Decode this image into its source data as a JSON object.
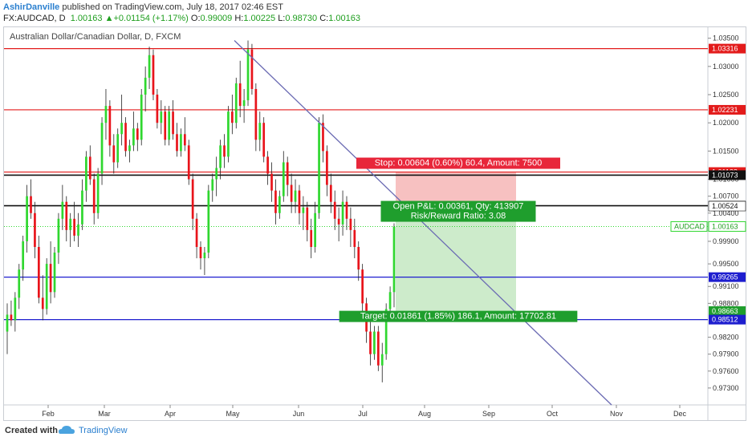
{
  "header": {
    "author": "AshirDanville",
    "published": "published on TradingView.com, July 18, 2017 02:46 EST",
    "symbol": "FX:AUDCAD, D",
    "last": "1.00163",
    "change": "+0.01154 (+1.17%)",
    "open_label": "O:",
    "open": "0.99009",
    "high_label": "H:",
    "high": "1.00225",
    "low_label": "L:",
    "low": "0.98730",
    "close_label": "C:",
    "close": "1.00163"
  },
  "chart_title": "Australian Dollar/Canadian Dollar, D, FXCM",
  "footer": {
    "created": "Created with",
    "brand": "TradingView"
  },
  "colors": {
    "up": "#2fd72f",
    "down": "#e8141b",
    "red_line": "#e31b1b",
    "black_line": "#111111",
    "blue_line": "#1e1ecf",
    "trend_line": "#6b6bb3",
    "stop_zone": "#f7c1c1",
    "target_zone": "#cdebcb",
    "stop_label": "#e8263a",
    "target_label": "#1f9e2d"
  },
  "chart_data": {
    "type": "candlestick",
    "x_ticks": [
      "Feb",
      "Mar",
      "Apr",
      "May",
      "Jun",
      "Jul",
      "Aug",
      "Sep",
      "Oct",
      "Nov",
      "Dec"
    ],
    "y_ticks": [
      "1.03500",
      "1.03000",
      "1.02500",
      "1.02000",
      "1.01500",
      "1.01000",
      "1.00700",
      "1.00400",
      "0.99900",
      "0.99500",
      "0.99100",
      "0.98800",
      "0.98200",
      "0.97900",
      "0.97600",
      "0.97300"
    ],
    "ylim": [
      0.97,
      1.0368
    ],
    "horizontal_levels": [
      {
        "price": 1.03316,
        "label": "1.03316",
        "color": "red"
      },
      {
        "price": 1.02231,
        "label": "1.02231",
        "color": "red"
      },
      {
        "price": 1.01128,
        "label": "1.01128",
        "color": "red"
      },
      {
        "price": 1.01073,
        "label": "1.01073",
        "color": "black"
      },
      {
        "price": 1.00531,
        "label": "1.00531",
        "color": "black"
      },
      {
        "price": 1.00524,
        "label": "1.00524",
        "color": "white"
      },
      {
        "price": 0.99265,
        "label": "0.99265",
        "color": "blue"
      },
      {
        "price": 0.98663,
        "label": "0.98663",
        "color": "green"
      },
      {
        "price": 0.98512,
        "label": "0.98512",
        "color": "blue"
      }
    ],
    "current_price": {
      "symbol": "AUDCAD",
      "price": 1.00163,
      "label": "1.00163"
    },
    "position": {
      "stop_text": "Stop: 0.00604 (0.60%) 60.4, Amount: 7500",
      "pnl_text": "Open P&L: 0.00361, Qty: 413907",
      "rr_text": "Risk/Reward Ratio: 3.08",
      "target_text": "Target: 0.01861 (1.85%) 186.1, Amount: 17702.81"
    },
    "candles": [
      [
        0.983,
        0.988,
        0.979,
        0.986
      ],
      [
        0.986,
        0.9885,
        0.984,
        0.985
      ],
      [
        0.985,
        0.99,
        0.983,
        0.989
      ],
      [
        0.989,
        0.995,
        0.987,
        0.994
      ],
      [
        0.994,
        1.0,
        0.992,
        0.999
      ],
      [
        0.999,
        1.009,
        0.997,
        1.007
      ],
      [
        1.007,
        1.01,
        1.003,
        1.004
      ],
      [
        1.004,
        1.006,
        0.996,
        0.998
      ],
      [
        0.998,
        1.0,
        0.988,
        0.989
      ],
      [
        0.989,
        0.993,
        0.985,
        0.987
      ],
      [
        0.987,
        0.996,
        0.986,
        0.995
      ],
      [
        0.995,
        0.999,
        0.988,
        0.99
      ],
      [
        0.99,
        0.998,
        0.989,
        0.997
      ],
      [
        0.997,
        1.004,
        0.995,
        1.003
      ],
      [
        1.003,
        1.009,
        1.001,
        1.006
      ],
      [
        1.006,
        1.007,
        0.999,
        1.001
      ],
      [
        1.001,
        1.004,
        0.998,
        1.003
      ],
      [
        1.003,
        1.006,
        0.999,
        1.0
      ],
      [
        1.0,
        1.004,
        0.998,
        1.002
      ],
      [
        1.002,
        1.01,
        1.001,
        1.008
      ],
      [
        1.008,
        1.015,
        1.006,
        1.014
      ],
      [
        1.014,
        1.016,
        1.009,
        1.01
      ],
      [
        1.01,
        1.011,
        1.002,
        1.004
      ],
      [
        1.004,
        1.012,
        1.003,
        1.011
      ],
      [
        1.011,
        1.021,
        1.009,
        1.02
      ],
      [
        1.02,
        1.026,
        1.017,
        1.023
      ],
      [
        1.023,
        1.024,
        1.014,
        1.016
      ],
      [
        1.016,
        1.018,
        1.011,
        1.013
      ],
      [
        1.013,
        1.019,
        1.012,
        1.018
      ],
      [
        1.018,
        1.025,
        1.016,
        1.02
      ],
      [
        1.02,
        1.021,
        1.014,
        1.015
      ],
      [
        1.015,
        1.017,
        1.013,
        1.016
      ],
      [
        1.016,
        1.022,
        1.015,
        1.019
      ],
      [
        1.019,
        1.02,
        1.015,
        1.017
      ],
      [
        1.017,
        1.026,
        1.016,
        1.025
      ],
      [
        1.025,
        1.03,
        1.022,
        1.028
      ],
      [
        1.028,
        1.0335,
        1.026,
        1.032
      ],
      [
        1.032,
        1.033,
        1.024,
        1.025
      ],
      [
        1.025,
        1.026,
        1.019,
        1.02
      ],
      [
        1.02,
        1.024,
        1.018,
        1.022
      ],
      [
        1.022,
        1.023,
        1.016,
        1.017
      ],
      [
        1.017,
        1.023,
        1.016,
        1.022
      ],
      [
        1.022,
        1.024,
        1.017,
        1.018
      ],
      [
        1.018,
        1.02,
        1.014,
        1.015
      ],
      [
        1.015,
        1.019,
        1.014,
        1.018
      ],
      [
        1.018,
        1.021,
        1.015,
        1.016
      ],
      [
        1.016,
        1.017,
        1.009,
        1.01
      ],
      [
        1.01,
        1.011,
        1.001,
        1.003
      ],
      [
        1.003,
        1.004,
        0.996,
        0.998
      ],
      [
        0.998,
        0.999,
        0.994,
        0.996
      ],
      [
        0.996,
        0.998,
        0.993,
        0.997
      ],
      [
        0.997,
        1.009,
        0.996,
        1.008
      ],
      [
        1.008,
        1.011,
        1.006,
        1.01
      ],
      [
        1.01,
        1.014,
        1.007,
        1.012
      ],
      [
        1.012,
        1.017,
        1.01,
        1.016
      ],
      [
        1.016,
        1.018,
        1.012,
        1.014
      ],
      [
        1.014,
        1.023,
        1.013,
        1.022
      ],
      [
        1.022,
        1.025,
        1.018,
        1.02
      ],
      [
        1.02,
        1.028,
        1.019,
        1.027
      ],
      [
        1.027,
        1.031,
        1.021,
        1.023
      ],
      [
        1.023,
        1.026,
        1.02,
        1.024
      ],
      [
        1.024,
        1.0346,
        1.023,
        1.033
      ],
      [
        1.033,
        1.034,
        1.025,
        1.026
      ],
      [
        1.026,
        1.027,
        1.015,
        1.017
      ],
      [
        1.017,
        1.022,
        1.015,
        1.02
      ],
      [
        1.02,
        1.021,
        1.013,
        1.014
      ],
      [
        1.014,
        1.015,
        1.009,
        1.011
      ],
      [
        1.011,
        1.013,
        1.006,
        1.008
      ],
      [
        1.008,
        1.01,
        1.002,
        1.004
      ],
      [
        1.004,
        1.008,
        1.003,
        1.007
      ],
      [
        1.007,
        1.015,
        1.006,
        1.013
      ],
      [
        1.013,
        1.014,
        1.007,
        1.009
      ],
      [
        1.009,
        1.011,
        1.004,
        1.006
      ],
      [
        1.006,
        1.01,
        1.004,
        1.008
      ],
      [
        1.008,
        1.009,
        1.002,
        1.004
      ],
      [
        1.004,
        1.007,
        1.001,
        1.005
      ],
      [
        1.005,
        1.006,
        0.999,
        1.001
      ],
      [
        1.001,
        1.003,
        0.996,
        0.998
      ],
      [
        0.998,
        1.006,
        0.997,
        1.004
      ],
      [
        1.004,
        1.021,
        1.003,
        1.02
      ],
      [
        1.02,
        1.0215,
        1.013,
        1.015
      ],
      [
        1.015,
        1.016,
        1.007,
        1.009
      ],
      [
        1.009,
        1.011,
        1.004,
        1.006
      ],
      [
        1.006,
        1.008,
        1.001,
        1.003
      ],
      [
        1.003,
        1.005,
        0.999,
        1.002
      ],
      [
        1.002,
        1.008,
        1.0,
        1.006
      ],
      [
        1.006,
        1.007,
        1.001,
        1.003
      ],
      [
        1.003,
        1.005,
        0.998,
        1.001
      ],
      [
        1.001,
        1.003,
        0.996,
        0.998
      ],
      [
        0.998,
        0.999,
        0.992,
        0.994
      ],
      [
        0.994,
        0.995,
        0.986,
        0.988
      ],
      [
        0.988,
        0.989,
        0.981,
        0.983
      ],
      [
        0.983,
        0.985,
        0.977,
        0.979
      ],
      [
        0.979,
        0.984,
        0.978,
        0.983
      ],
      [
        0.983,
        0.984,
        0.976,
        0.977
      ],
      [
        0.977,
        0.981,
        0.974,
        0.979
      ],
      [
        0.979,
        0.988,
        0.978,
        0.987
      ],
      [
        0.987,
        0.991,
        0.985,
        0.99
      ],
      [
        0.99,
        1.0022,
        0.9873,
        1.0016
      ]
    ]
  }
}
